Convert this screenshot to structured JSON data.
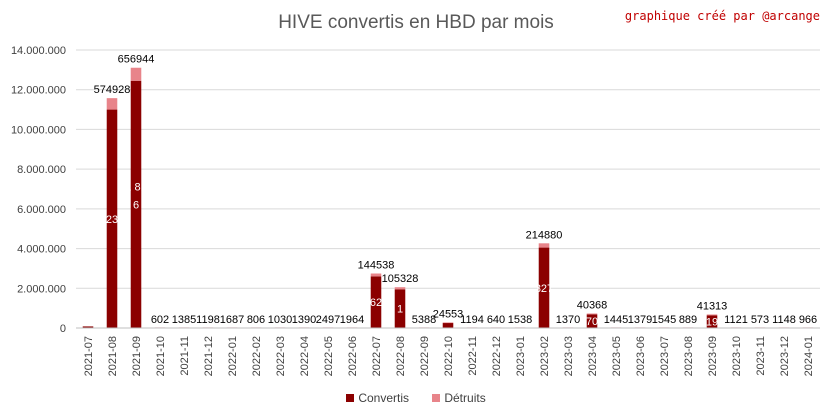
{
  "chart_data": {
    "type": "bar",
    "stacked": true,
    "title": "HIVE convertis en HBD par mois",
    "credit": "graphique créé par @arcange",
    "categories": [
      "2021-07",
      "2021-08",
      "2021-09",
      "2021-10",
      "2021-11",
      "2021-12",
      "2022-01",
      "2022-02",
      "2022-03",
      "2022-04",
      "2022-05",
      "2022-06",
      "2022-07",
      "2022-08",
      "2022-09",
      "2022-10",
      "2022-11",
      "2022-12",
      "2023-01",
      "2023-02",
      "2023-03",
      "2023-04",
      "2023-05",
      "2023-06",
      "2023-07",
      "2023-08",
      "2023-09",
      "2023-10",
      "2023-11",
      "2023-12",
      "2024-01"
    ],
    "series": [
      {
        "name": "Convertis",
        "color": "#8b0000",
        "values": [
          80000,
          11000000,
          12450000,
          0,
          0,
          0,
          0,
          0,
          0,
          0,
          0,
          0,
          2600000,
          1950000,
          0,
          250000,
          0,
          0,
          0,
          4050000,
          0,
          690000,
          0,
          0,
          0,
          0,
          640000,
          0,
          0,
          0,
          0
        ]
      },
      {
        "name": "Détruits",
        "color": "#e8848a",
        "values": [
          0,
          574928,
          656944,
          602,
          1385,
          1198,
          1687,
          806,
          1030,
          1390,
          2497,
          1964,
          144538,
          105328,
          5388,
          24553,
          1194,
          640,
          1538,
          214880,
          1370,
          40368,
          1445,
          1379,
          1545,
          889,
          41313,
          1121,
          573,
          1148,
          966
        ]
      }
    ],
    "data_labels": [
      "",
      "574928",
      "656944",
      "602",
      "1385",
      "1198",
      "1687",
      "806",
      "1030",
      "1390",
      "2497",
      "1964",
      "144538",
      "105328",
      "5388",
      "24553",
      "1194",
      "640",
      "1538",
      "214880",
      "1370",
      "40368",
      "1445",
      "1379",
      "1545",
      "889",
      "41313",
      "1121",
      "573",
      "1148",
      "966"
    ],
    "inner_labels": [
      {
        "index": 1,
        "text": "23"
      },
      {
        "index": 2,
        "text": "1 81"
      },
      {
        "index": 2,
        "text": "6"
      },
      {
        "index": 12,
        "text": "62"
      },
      {
        "index": 13,
        "text": "1"
      },
      {
        "index": 19,
        "text": "327"
      },
      {
        "index": 21,
        "text": "70"
      },
      {
        "index": 26,
        "text": "19"
      }
    ],
    "ylim": [
      0,
      14000000
    ],
    "y_ticks": [
      0,
      2000000,
      4000000,
      6000000,
      8000000,
      10000000,
      12000000,
      14000000
    ],
    "y_tick_labels": [
      "0",
      "2.000.000",
      "4.000.000",
      "6.000.000",
      "8.000.000",
      "10.000.000",
      "12.000.000",
      "14.000.000"
    ],
    "grid": true,
    "legend": "bottom"
  }
}
